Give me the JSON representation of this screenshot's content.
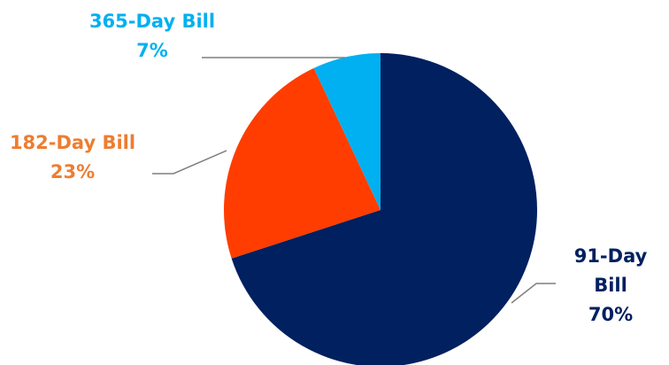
{
  "chart_data": {
    "type": "pie",
    "title": "",
    "start_angle_deg": 0,
    "direction": "clockwise",
    "slices": [
      {
        "name": "91-Day Bill",
        "label_lines": [
          "91-Day",
          "Bill"
        ],
        "value": 70,
        "value_label": "70%",
        "color": "#002060",
        "label_color": "#002060"
      },
      {
        "name": "182-Day Bill",
        "label_lines": [
          "182-Day Bill"
        ],
        "value": 23,
        "value_label": "23%",
        "color": "#ff3d00",
        "label_color": "#ed7d31"
      },
      {
        "name": "365-Day Bill",
        "label_lines": [
          "365-Day Bill"
        ],
        "value": 7,
        "value_label": "7%",
        "color": "#00b0f0",
        "label_color": "#00b0f0"
      }
    ],
    "leader_line_color": "#7f7f7f"
  }
}
